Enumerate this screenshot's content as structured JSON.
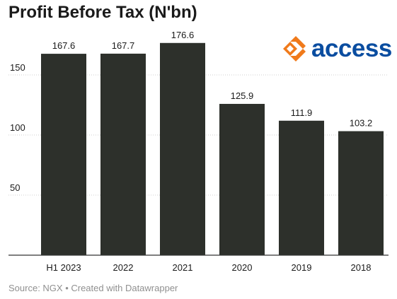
{
  "title": "Profit Before Tax (N'bn)",
  "logo": {
    "text": "access",
    "text_color": "#0a4da0",
    "mark_color": "#f07a1b"
  },
  "source": "Source: NGX • Created with Datawrapper",
  "colors": {
    "bar": "#2d302b",
    "grid": "#cfcfcf",
    "axis": "#333333",
    "text": "#1a1a1a"
  },
  "chart_data": {
    "type": "bar",
    "categories": [
      "H1 2023",
      "2022",
      "2021",
      "2020",
      "2019",
      "2018"
    ],
    "values": [
      167.6,
      167.7,
      176.6,
      125.9,
      111.9,
      103.2
    ],
    "value_labels": [
      "167.6",
      "167.7",
      "176.6",
      "125.9",
      "111.9",
      "103.2"
    ],
    "yticks": [
      50,
      100,
      150
    ],
    "ylim": [
      0,
      180
    ],
    "grid": true
  }
}
